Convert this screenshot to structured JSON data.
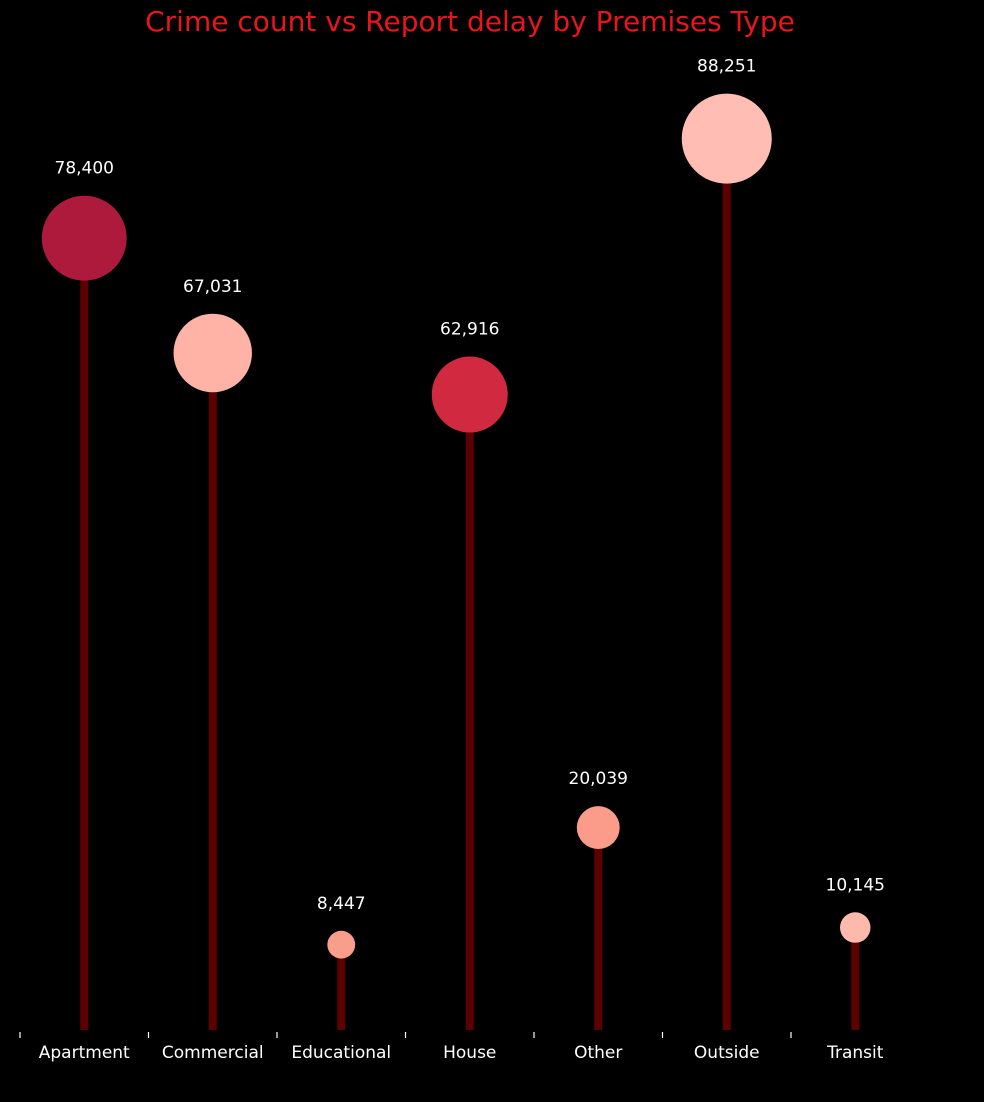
{
  "chart_data": {
    "type": "lollipop",
    "title": "Crime count vs Report delay by Premises Type",
    "xlabel": "",
    "ylabel": "",
    "categories": [
      "Apartment",
      "Commercial",
      "Educational",
      "House",
      "Other",
      "Outside",
      "Transit"
    ],
    "values": [
      78400,
      67031,
      8447,
      62916,
      20039,
      88251,
      10145
    ],
    "value_labels": [
      "78,400",
      "67,031",
      "8,447",
      "62,916",
      "20,039",
      "88,251",
      "10,145"
    ],
    "ylim": [
      0,
      100000
    ],
    "grid": false,
    "legend": "none",
    "marker_colors": [
      "#ae1a3c",
      "#feb3a6",
      "#fa9e8c",
      "#d02940",
      "#fa9c89",
      "#ffbdb3",
      "#fdb9ab"
    ],
    "stem_color": "#5d0000",
    "title_color": "#e8141e"
  }
}
